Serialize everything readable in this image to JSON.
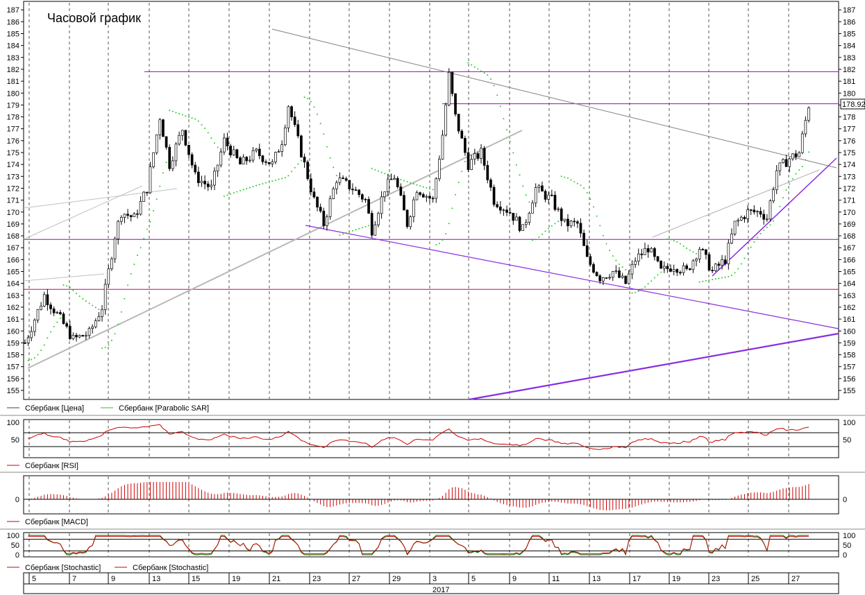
{
  "chart_data": {
    "type": "candlestick",
    "title": "Часовой график",
    "price_axis": {
      "ylim": [
        154.5,
        187.5
      ],
      "ticks": [
        155,
        156,
        157,
        158,
        159,
        160,
        161,
        162,
        163,
        164,
        165,
        166,
        167,
        168,
        169,
        170,
        171,
        172,
        173,
        174,
        175,
        176,
        177,
        178,
        179,
        180,
        181,
        182,
        183,
        184,
        185,
        186,
        187
      ]
    },
    "last_price_label": "178.92",
    "x_axis": {
      "labels": [
        "5",
        "7",
        "9",
        "13",
        "15",
        "19",
        "21",
        "23",
        "27",
        "29",
        "3",
        "5",
        "9",
        "11",
        "13",
        "17",
        "19",
        "23",
        "25",
        "27"
      ],
      "year_label": "2017"
    },
    "horizontal_levels": [
      {
        "value": 181.8,
        "color": "#a000c8"
      },
      {
        "value": 179.1,
        "color": "#a000c8"
      },
      {
        "value": 167.7,
        "color": "#a000c8"
      },
      {
        "value": 163.5,
        "color": "#c8006e"
      }
    ],
    "price_anchors": [
      {
        "t": 0,
        "v": 159
      },
      {
        "t": 3,
        "v": 161
      },
      {
        "t": 6,
        "v": 163
      },
      {
        "t": 11,
        "v": 161
      },
      {
        "t": 15,
        "v": 159.3
      },
      {
        "t": 20,
        "v": 159.8
      },
      {
        "t": 24,
        "v": 162
      },
      {
        "t": 28,
        "v": 168
      },
      {
        "t": 30,
        "v": 170
      },
      {
        "t": 34,
        "v": 169.5
      },
      {
        "t": 38,
        "v": 172
      },
      {
        "t": 42,
        "v": 178
      },
      {
        "t": 45,
        "v": 174
      },
      {
        "t": 49,
        "v": 177
      },
      {
        "t": 53,
        "v": 173
      },
      {
        "t": 58,
        "v": 172
      },
      {
        "t": 62,
        "v": 176
      },
      {
        "t": 67,
        "v": 174
      },
      {
        "t": 72,
        "v": 175
      },
      {
        "t": 77,
        "v": 174
      },
      {
        "t": 80,
        "v": 176
      },
      {
        "t": 82,
        "v": 179
      },
      {
        "t": 84,
        "v": 177
      },
      {
        "t": 87,
        "v": 174
      },
      {
        "t": 90,
        "v": 171
      },
      {
        "t": 93,
        "v": 169
      },
      {
        "t": 97,
        "v": 172.8
      },
      {
        "t": 102,
        "v": 172
      },
      {
        "t": 106,
        "v": 171
      },
      {
        "t": 108,
        "v": 168.5
      },
      {
        "t": 112,
        "v": 172
      },
      {
        "t": 115,
        "v": 173
      },
      {
        "t": 119,
        "v": 169
      },
      {
        "t": 122,
        "v": 172
      },
      {
        "t": 127,
        "v": 171
      },
      {
        "t": 130,
        "v": 176.5
      },
      {
        "t": 132,
        "v": 181.5
      },
      {
        "t": 134,
        "v": 178
      },
      {
        "t": 138,
        "v": 174
      },
      {
        "t": 142,
        "v": 175
      },
      {
        "t": 146,
        "v": 171
      },
      {
        "t": 151,
        "v": 170
      },
      {
        "t": 155,
        "v": 168.5
      },
      {
        "t": 159,
        "v": 172
      },
      {
        "t": 164,
        "v": 171
      },
      {
        "t": 168,
        "v": 169
      },
      {
        "t": 172,
        "v": 169
      },
      {
        "t": 175,
        "v": 166
      },
      {
        "t": 179,
        "v": 164.5
      },
      {
        "t": 183,
        "v": 165
      },
      {
        "t": 187,
        "v": 164
      },
      {
        "t": 190,
        "v": 166
      },
      {
        "t": 194,
        "v": 167
      },
      {
        "t": 198,
        "v": 165
      },
      {
        "t": 202,
        "v": 165.5
      },
      {
        "t": 206,
        "v": 165
      },
      {
        "t": 210,
        "v": 167
      },
      {
        "t": 214,
        "v": 165
      },
      {
        "t": 218,
        "v": 166
      },
      {
        "t": 221,
        "v": 169
      },
      {
        "t": 225,
        "v": 170
      },
      {
        "t": 229,
        "v": 170
      },
      {
        "t": 231,
        "v": 169.5
      },
      {
        "t": 234,
        "v": 173.5
      },
      {
        "t": 238,
        "v": 174.5
      },
      {
        "t": 241,
        "v": 175
      },
      {
        "t": 244,
        "v": 179
      }
    ],
    "series_legend": [
      {
        "name": "Сбербанк [Цена]",
        "color": "#404040"
      },
      {
        "name": "Сбербанк [Parabolic SAR]",
        "color": "#22cc22"
      }
    ],
    "rsi": {
      "legend": "Сбербанк [RSI]",
      "ticks": [
        100,
        50
      ],
      "levels": [
        70,
        30
      ]
    },
    "macd": {
      "legend": "Сбербанк [MACD]",
      "ticks": [
        0
      ]
    },
    "stochastic": {
      "legends": [
        "Сбербанк [Stochastic]",
        "Сбербанк [Stochastic]"
      ],
      "ticks": [
        100,
        50,
        0
      ],
      "levels": [
        80,
        20
      ]
    }
  }
}
